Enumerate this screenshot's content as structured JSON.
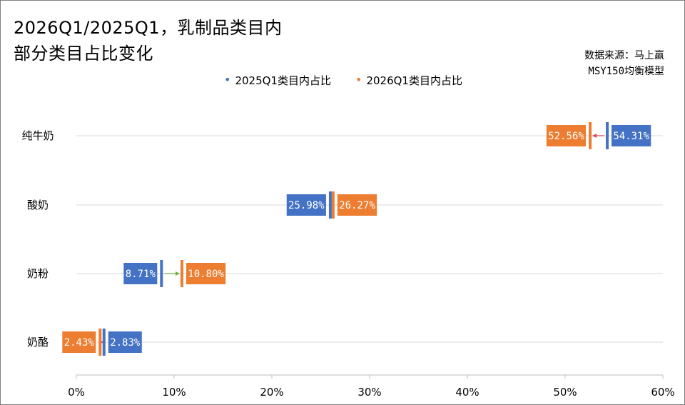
{
  "title_lines": [
    "2026Q1/2025Q1，乳制品类目内",
    "部分类目占比变化"
  ],
  "source": {
    "line1": "数据来源：马上赢",
    "line2": "MSY150均衡模型"
  },
  "colors": {
    "blue": "#4472c4",
    "orange": "#ed7d31",
    "grid": "#d9d9d9",
    "axis": "#bfbfbf",
    "arrow_down": "#e0445a",
    "arrow_up": "#70ad47"
  },
  "chart_data": {
    "type": "dumbbell",
    "categories": [
      "纯牛奶",
      "酸奶",
      "奶粉",
      "奶酪"
    ],
    "series": [
      {
        "name": "2025Q1类目内占比",
        "color": "#4472c4",
        "values": [
          54.31,
          25.98,
          8.71,
          2.83
        ],
        "labels": [
          "54.31%",
          "25.98%",
          "8.71%",
          "2.83%"
        ]
      },
      {
        "name": "2026Q1类目内占比",
        "color": "#ed7d31",
        "values": [
          52.56,
          26.27,
          10.8,
          2.43
        ],
        "labels": [
          "52.56%",
          "26.27%",
          "10.80%",
          "2.43%"
        ]
      }
    ],
    "xlim": [
      0,
      60
    ],
    "xticks": [
      0,
      10,
      20,
      30,
      40,
      50,
      60
    ],
    "xtick_labels": [
      "0%",
      "10%",
      "20%",
      "30%",
      "40%",
      "50%",
      "60%"
    ],
    "grid": "horizontal",
    "legend_position": "top-center"
  }
}
